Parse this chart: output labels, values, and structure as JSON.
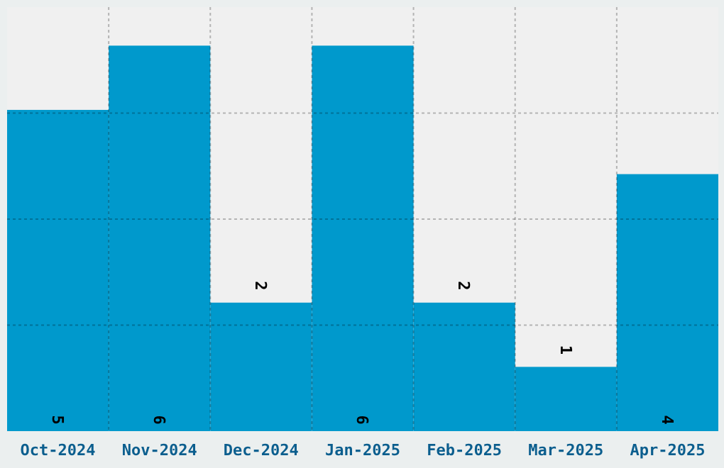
{
  "chart_data": {
    "type": "bar",
    "categories": [
      "Oct-2024",
      "Nov-2024",
      "Dec-2024",
      "Jan-2025",
      "Feb-2025",
      "Mar-2025",
      "Apr-2025"
    ],
    "values": [
      5,
      6,
      2,
      6,
      2,
      1,
      4
    ],
    "color": "#0099cc",
    "ylim": [
      0,
      6.6
    ],
    "yticks": [
      {
        "value": 1.65,
        "label": null
      },
      {
        "value": 3.3,
        "label": null
      },
      {
        "value": 4.95,
        "label": null
      }
    ],
    "tick_labels": "x",
    "grid": true,
    "data_labels": true
  }
}
